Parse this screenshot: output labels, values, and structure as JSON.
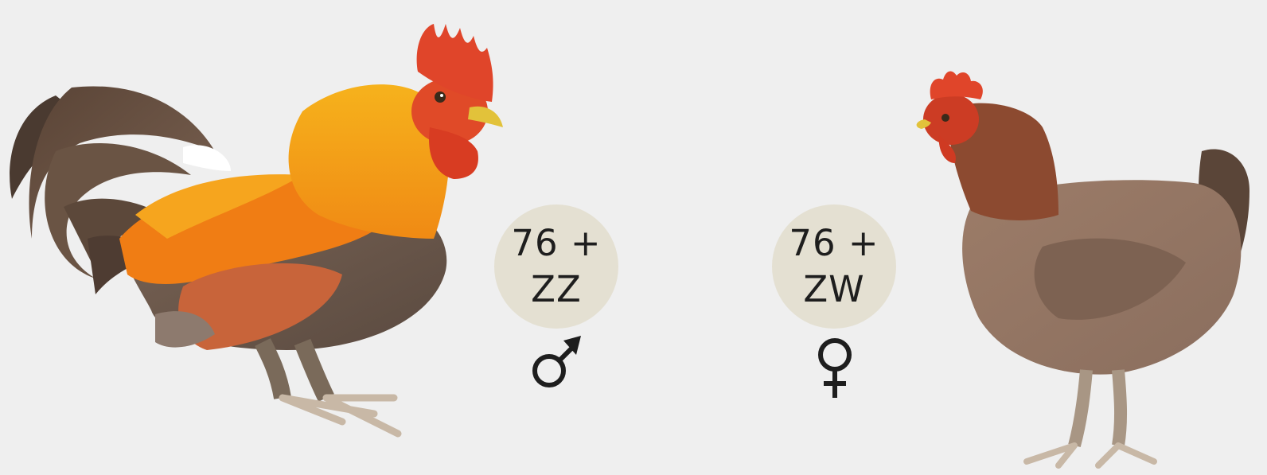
{
  "male": {
    "chromosomes_line1": "76 +",
    "chromosomes_line2": "ZZ",
    "symbol": "male-symbol-icon",
    "figure": "rooster-illustration"
  },
  "female": {
    "chromosomes_line1": "76 +",
    "chromosomes_line2": "ZW",
    "symbol": "female-symbol-icon",
    "figure": "hen-illustration"
  },
  "colors": {
    "background": "#efefef",
    "badge": "#e4e0d2",
    "text": "#1e1e1e"
  }
}
